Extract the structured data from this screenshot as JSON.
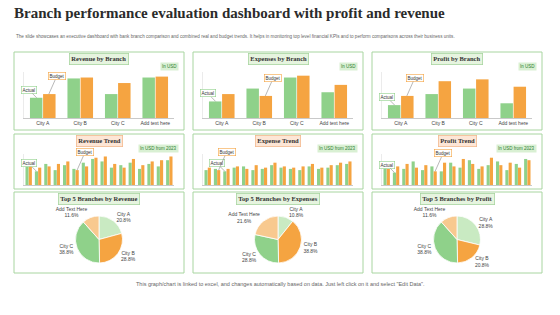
{
  "title": "Branch performance evaluation dashboard with profit and revenue",
  "subtitle": "The slide showcases an executive dashboard with bank branch comparison and combined real and budget trends. It helps in monitoring top level financial KPIs and to perform comparisons across their business units.",
  "footer": "This graph/chart is linked to excel, and changes automatically based on data. Just left click on it and select \"Edit Data\".",
  "chart_data": [
    {
      "type": "bar",
      "title": "Revenue by Branch",
      "subtitle": "In USD",
      "categories": [
        "City A",
        "City B",
        "City C",
        "Add text here"
      ],
      "series": [
        {
          "name": "Actual",
          "color": "#8fd18a",
          "values": [
            2.2,
            4.3,
            2.6,
            4.4
          ]
        },
        {
          "name": "Budget",
          "color": "#f5a441",
          "values": [
            2.6,
            4.4,
            3.8,
            4.5
          ]
        }
      ],
      "ylim": [
        0,
        5
      ],
      "tick_labels": "x",
      "grid": false
    },
    {
      "type": "bar",
      "title": "Expenses by Branch",
      "subtitle": "In USD",
      "categories": [
        "City A",
        "City B",
        "City C",
        "Add text here"
      ],
      "series": [
        {
          "name": "Actual",
          "color": "#8fd18a",
          "values": [
            1.8,
            3.2,
            4.4,
            2.8
          ]
        },
        {
          "name": "Budget",
          "color": "#f5a441",
          "values": [
            2.6,
            2.4,
            4.6,
            3.6
          ]
        }
      ],
      "ylim": [
        0,
        5
      ],
      "tick_labels": "x",
      "grid": false
    },
    {
      "type": "bar",
      "title": "Profit by Branch",
      "subtitle": "In USD",
      "categories": [
        "City A",
        "City B",
        "City C",
        "Add text here"
      ],
      "series": [
        {
          "name": "Actual",
          "color": "#8fd18a",
          "values": [
            1.4,
            2.6,
            3.2,
            1.6
          ]
        },
        {
          "name": "Budget",
          "color": "#f5a441",
          "values": [
            2.4,
            4.0,
            4.2,
            3.4
          ]
        }
      ],
      "ylim": [
        0,
        5
      ],
      "tick_labels": "x",
      "grid": false
    },
    {
      "type": "bar",
      "title": "Revenue Trend",
      "subtitle": "In USD from 2023",
      "categories": [
        null,
        null,
        null,
        null,
        null,
        null,
        null,
        null,
        null,
        null,
        null,
        null,
        null,
        null,
        null,
        null
      ],
      "series": [
        {
          "name": "Actual",
          "color": "#8fd18a",
          "values": [
            3.0,
            2.2,
            3.4,
            2.4,
            3.2,
            2.6,
            3.6,
            4.2,
            3.8,
            2.8,
            3.2,
            3.6,
            2.6,
            3.4,
            3.0,
            4.0
          ]
        },
        {
          "name": "Budget",
          "color": "#f5a441",
          "values": [
            3.6,
            2.8,
            3.0,
            3.4,
            3.8,
            2.4,
            3.0,
            4.4,
            4.6,
            3.4,
            2.8,
            4.2,
            3.2,
            3.8,
            4.0,
            4.6
          ]
        }
      ],
      "ylim": [
        0,
        5
      ],
      "tick_labels": false,
      "grid": false
    },
    {
      "type": "bar",
      "title": "Expense Trend",
      "subtitle": "In USD from 2023",
      "categories": [
        null,
        null,
        null,
        null,
        null,
        null,
        null,
        null,
        null,
        null,
        null,
        null,
        null,
        null,
        null,
        null
      ],
      "series": [
        {
          "name": "Actual",
          "color": "#8fd18a",
          "values": [
            2.4,
            2.6,
            2.2,
            2.8,
            3.0,
            2.4,
            2.6,
            3.2,
            2.8,
            2.6,
            2.4,
            3.0,
            2.6,
            2.8,
            3.2,
            3.4
          ]
        },
        {
          "name": "Budget",
          "color": "#f5a441",
          "values": [
            2.8,
            2.4,
            2.6,
            3.0,
            2.6,
            3.2,
            2.8,
            3.6,
            3.0,
            2.8,
            3.0,
            3.4,
            2.8,
            3.2,
            3.6,
            3.8
          ]
        }
      ],
      "ylim": [
        0,
        5
      ],
      "tick_labels": false,
      "grid": false
    },
    {
      "type": "bar",
      "title": "Profit Trend",
      "subtitle": "In USD from 2023",
      "categories": [
        null,
        null,
        null,
        null,
        null,
        null,
        null,
        null,
        null,
        null,
        null,
        null,
        null,
        null,
        null,
        null
      ],
      "series": [
        {
          "name": "Actual",
          "color": "#8fd18a",
          "values": [
            3.4,
            2.0,
            2.6,
            3.8,
            2.4,
            3.0,
            2.2,
            3.6,
            2.8,
            4.0,
            2.6,
            3.2,
            3.8,
            2.4,
            3.4,
            4.2
          ]
        },
        {
          "name": "Budget",
          "color": "#f5a441",
          "values": [
            2.6,
            3.0,
            3.4,
            2.8,
            3.2,
            2.2,
            3.6,
            3.0,
            4.2,
            3.4,
            3.0,
            4.4,
            3.2,
            3.6,
            2.8,
            4.0
          ]
        }
      ],
      "ylim": [
        0,
        5
      ],
      "tick_labels": false,
      "grid": false
    },
    {
      "type": "pie",
      "title": "Top 5 Branches by Revenue",
      "categories": [
        "City A",
        "City B",
        "City C",
        "Add Text Here"
      ],
      "values": [
        20.8,
        28.8,
        38.8,
        11.6
      ],
      "value_labels": [
        "20.8%",
        "28.8%",
        "38.8%",
        "11.6%"
      ],
      "colors": [
        "#c9eac2",
        "#f5a441",
        "#8fd18a",
        "#f8c98f"
      ],
      "data_labels": true
    },
    {
      "type": "pie",
      "title": "Top 5 Branches by Expenses",
      "categories": [
        "City A",
        "City B",
        "City C",
        "Add Text Here"
      ],
      "values": [
        10.8,
        38.8,
        28.8,
        21.6
      ],
      "value_labels": [
        "10.8%",
        "38.8%",
        "28.8%",
        "21.6%"
      ],
      "colors": [
        "#c9eac2",
        "#f5a441",
        "#8fd18a",
        "#f8c98f"
      ],
      "data_labels": true
    },
    {
      "type": "pie",
      "title": "Top 5 Branches by Profit",
      "categories": [
        "City A",
        "City B",
        "City C",
        "Add Text Here"
      ],
      "values": [
        28.8,
        20.8,
        38.8,
        11.6
      ],
      "value_labels": [
        "28.8%",
        "20.8%",
        "38.8%",
        "11.6%"
      ],
      "colors": [
        "#c9eac2",
        "#f5a441",
        "#8fd18a",
        "#f8c98f"
      ],
      "data_labels": true
    }
  ]
}
